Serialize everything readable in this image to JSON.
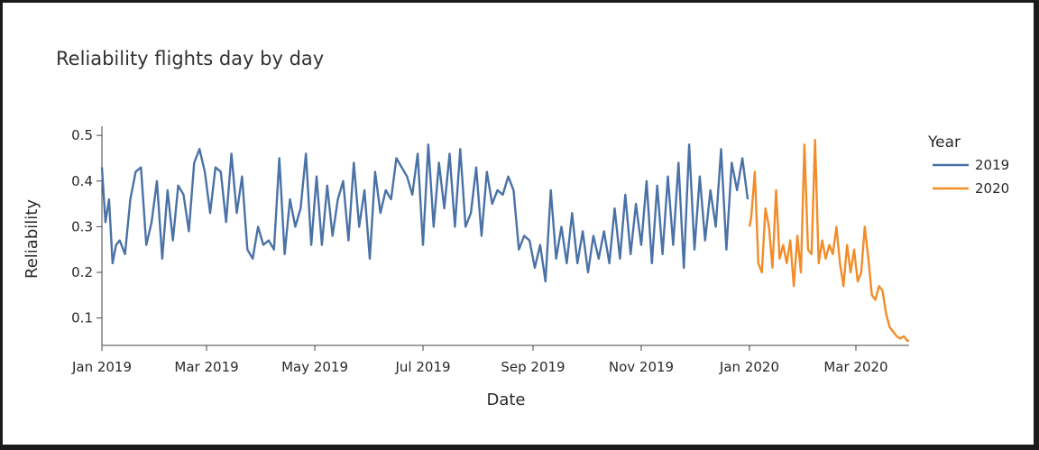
{
  "chart_data": {
    "type": "line",
    "title": "Reliability flights day by day",
    "xlabel": "Date",
    "ylabel": "Reliability",
    "x_range": [
      "2019-01-01",
      "2020-03-31"
    ],
    "ylim": [
      0.04,
      0.52
    ],
    "y_ticks": [
      0.1,
      0.2,
      0.3,
      0.4,
      0.5
    ],
    "y_tick_labels": [
      "0.1",
      "0.2",
      "0.3",
      "0.4",
      "0.5"
    ],
    "x_ticks": [
      "2019-01-01",
      "2019-03-01",
      "2019-05-01",
      "2019-07-01",
      "2019-09-01",
      "2019-11-01",
      "2020-01-01",
      "2020-03-01"
    ],
    "x_tick_labels": [
      "Jan 2019",
      "Mar 2019",
      "May 2019",
      "Jul 2019",
      "Sep 2019",
      "Nov 2019",
      "Jan 2020",
      "Mar 2020"
    ],
    "grid": false,
    "legend": {
      "title": "Year",
      "position": "right"
    },
    "series": [
      {
        "name": "2019",
        "color": "#4a72a6",
        "x": [
          "2019-01-01",
          "2019-01-03",
          "2019-01-05",
          "2019-01-07",
          "2019-01-09",
          "2019-01-11",
          "2019-01-14",
          "2019-01-17",
          "2019-01-20",
          "2019-01-23",
          "2019-01-26",
          "2019-01-29",
          "2019-02-01",
          "2019-02-04",
          "2019-02-07",
          "2019-02-10",
          "2019-02-13",
          "2019-02-16",
          "2019-02-19",
          "2019-02-22",
          "2019-02-25",
          "2019-02-28",
          "2019-03-03",
          "2019-03-06",
          "2019-03-09",
          "2019-03-12",
          "2019-03-15",
          "2019-03-18",
          "2019-03-21",
          "2019-03-24",
          "2019-03-27",
          "2019-03-30",
          "2019-04-02",
          "2019-04-05",
          "2019-04-08",
          "2019-04-11",
          "2019-04-14",
          "2019-04-17",
          "2019-04-20",
          "2019-04-23",
          "2019-04-26",
          "2019-04-29",
          "2019-05-02",
          "2019-05-05",
          "2019-05-08",
          "2019-05-11",
          "2019-05-14",
          "2019-05-17",
          "2019-05-20",
          "2019-05-23",
          "2019-05-26",
          "2019-05-29",
          "2019-06-01",
          "2019-06-04",
          "2019-06-07",
          "2019-06-10",
          "2019-06-13",
          "2019-06-16",
          "2019-06-19",
          "2019-06-22",
          "2019-06-25",
          "2019-06-28",
          "2019-07-01",
          "2019-07-04",
          "2019-07-07",
          "2019-07-10",
          "2019-07-13",
          "2019-07-16",
          "2019-07-19",
          "2019-07-22",
          "2019-07-25",
          "2019-07-28",
          "2019-07-31",
          "2019-08-03",
          "2019-08-06",
          "2019-08-09",
          "2019-08-12",
          "2019-08-15",
          "2019-08-18",
          "2019-08-21",
          "2019-08-24",
          "2019-08-27",
          "2019-08-30",
          "2019-09-02",
          "2019-09-05",
          "2019-09-08",
          "2019-09-11",
          "2019-09-14",
          "2019-09-17",
          "2019-09-20",
          "2019-09-23",
          "2019-09-26",
          "2019-09-29",
          "2019-10-02",
          "2019-10-05",
          "2019-10-08",
          "2019-10-11",
          "2019-10-14",
          "2019-10-17",
          "2019-10-20",
          "2019-10-23",
          "2019-10-26",
          "2019-10-29",
          "2019-11-01",
          "2019-11-04",
          "2019-11-07",
          "2019-11-10",
          "2019-11-13",
          "2019-11-16",
          "2019-11-19",
          "2019-11-22",
          "2019-11-25",
          "2019-11-28",
          "2019-12-01",
          "2019-12-04",
          "2019-12-07",
          "2019-12-10",
          "2019-12-13",
          "2019-12-16",
          "2019-12-19",
          "2019-12-22",
          "2019-12-25",
          "2019-12-28",
          "2019-12-31"
        ],
        "values": [
          0.43,
          0.31,
          0.36,
          0.22,
          0.26,
          0.27,
          0.24,
          0.36,
          0.42,
          0.43,
          0.26,
          0.31,
          0.4,
          0.23,
          0.38,
          0.27,
          0.39,
          0.37,
          0.29,
          0.44,
          0.47,
          0.42,
          0.33,
          0.43,
          0.42,
          0.31,
          0.46,
          0.33,
          0.41,
          0.25,
          0.23,
          0.3,
          0.26,
          0.27,
          0.25,
          0.45,
          0.24,
          0.36,
          0.3,
          0.34,
          0.46,
          0.26,
          0.41,
          0.26,
          0.39,
          0.28,
          0.36,
          0.4,
          0.27,
          0.44,
          0.3,
          0.38,
          0.23,
          0.42,
          0.33,
          0.38,
          0.36,
          0.45,
          0.43,
          0.41,
          0.37,
          0.46,
          0.26,
          0.48,
          0.3,
          0.44,
          0.34,
          0.46,
          0.3,
          0.47,
          0.3,
          0.33,
          0.43,
          0.28,
          0.42,
          0.35,
          0.38,
          0.37,
          0.41,
          0.38,
          0.25,
          0.28,
          0.27,
          0.21,
          0.26,
          0.18,
          0.38,
          0.23,
          0.3,
          0.22,
          0.33,
          0.22,
          0.29,
          0.2,
          0.28,
          0.23,
          0.29,
          0.22,
          0.34,
          0.23,
          0.37,
          0.24,
          0.35,
          0.26,
          0.4,
          0.22,
          0.39,
          0.24,
          0.41,
          0.26,
          0.44,
          0.21,
          0.48,
          0.25,
          0.41,
          0.27,
          0.38,
          0.3,
          0.47,
          0.25,
          0.44,
          0.38,
          0.45,
          0.36
        ]
      },
      {
        "name": "2020",
        "color": "#f28c28",
        "x": [
          "2020-01-01",
          "2020-01-02",
          "2020-01-04",
          "2020-01-06",
          "2020-01-08",
          "2020-01-10",
          "2020-01-12",
          "2020-01-14",
          "2020-01-16",
          "2020-01-18",
          "2020-01-20",
          "2020-01-22",
          "2020-01-24",
          "2020-01-26",
          "2020-01-28",
          "2020-01-30",
          "2020-02-01",
          "2020-02-03",
          "2020-02-05",
          "2020-02-07",
          "2020-02-09",
          "2020-02-11",
          "2020-02-13",
          "2020-02-15",
          "2020-02-17",
          "2020-02-19",
          "2020-02-21",
          "2020-02-23",
          "2020-02-25",
          "2020-02-27",
          "2020-02-29",
          "2020-03-02",
          "2020-03-04",
          "2020-03-06",
          "2020-03-08",
          "2020-03-10",
          "2020-03-12",
          "2020-03-14",
          "2020-03-16",
          "2020-03-18",
          "2020-03-20",
          "2020-03-22",
          "2020-03-24",
          "2020-03-26",
          "2020-03-28",
          "2020-03-30",
          "2020-03-31"
        ],
        "values": [
          0.3,
          0.32,
          0.42,
          0.22,
          0.2,
          0.34,
          0.3,
          0.21,
          0.38,
          0.23,
          0.26,
          0.22,
          0.27,
          0.17,
          0.28,
          0.2,
          0.48,
          0.25,
          0.24,
          0.49,
          0.22,
          0.27,
          0.23,
          0.26,
          0.24,
          0.3,
          0.22,
          0.17,
          0.26,
          0.2,
          0.25,
          0.18,
          0.2,
          0.3,
          0.23,
          0.15,
          0.14,
          0.17,
          0.16,
          0.11,
          0.08,
          0.07,
          0.06,
          0.055,
          0.06,
          0.05,
          0.05
        ]
      }
    ]
  }
}
